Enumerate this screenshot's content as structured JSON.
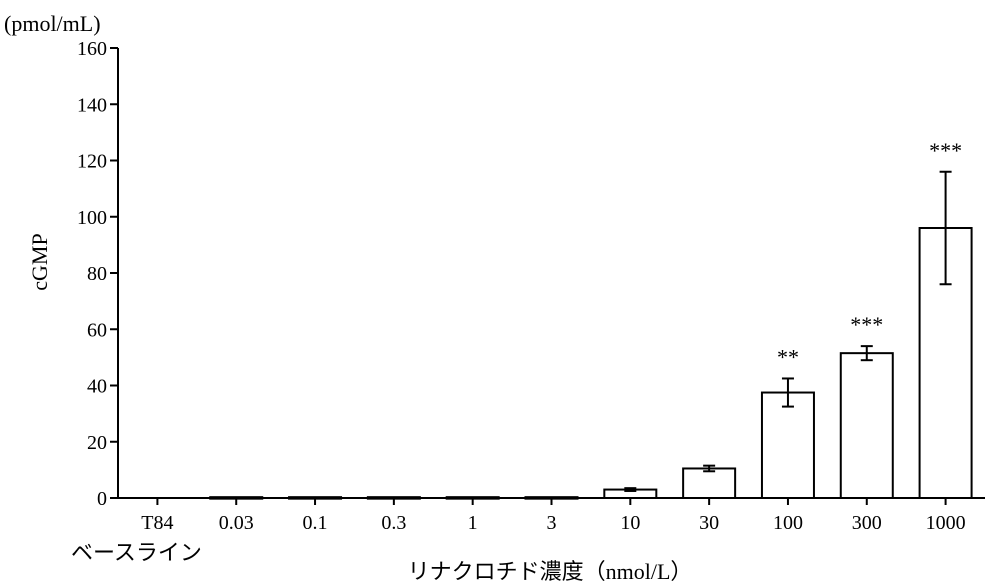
{
  "chart_data": {
    "type": "bar",
    "title": "",
    "ylabel": "cGMP",
    "yunit": "(pmol/mL)",
    "xlabel": "リナクロチド濃度（nmol/L）",
    "baseline_label": "ベースライン",
    "ylim": [
      0,
      160
    ],
    "yticks": [
      0,
      20,
      40,
      60,
      80,
      100,
      120,
      140,
      160
    ],
    "categories": [
      "T84",
      "0.03",
      "0.1",
      "0.3",
      "1",
      "3",
      "10",
      "30",
      "100",
      "300",
      "1000"
    ],
    "values": [
      0,
      0.3,
      0.3,
      0.3,
      0.3,
      0.3,
      3,
      10.5,
      37.5,
      51.5,
      96
    ],
    "errors": [
      0,
      0,
      0,
      0,
      0,
      0,
      0.5,
      1,
      5,
      2.5,
      20
    ],
    "significance": [
      "",
      "",
      "",
      "",
      "",
      "",
      "",
      "",
      "**",
      "***",
      "***"
    ],
    "grid": false,
    "bar_fill": "#ffffff",
    "bar_stroke": "#000000"
  }
}
